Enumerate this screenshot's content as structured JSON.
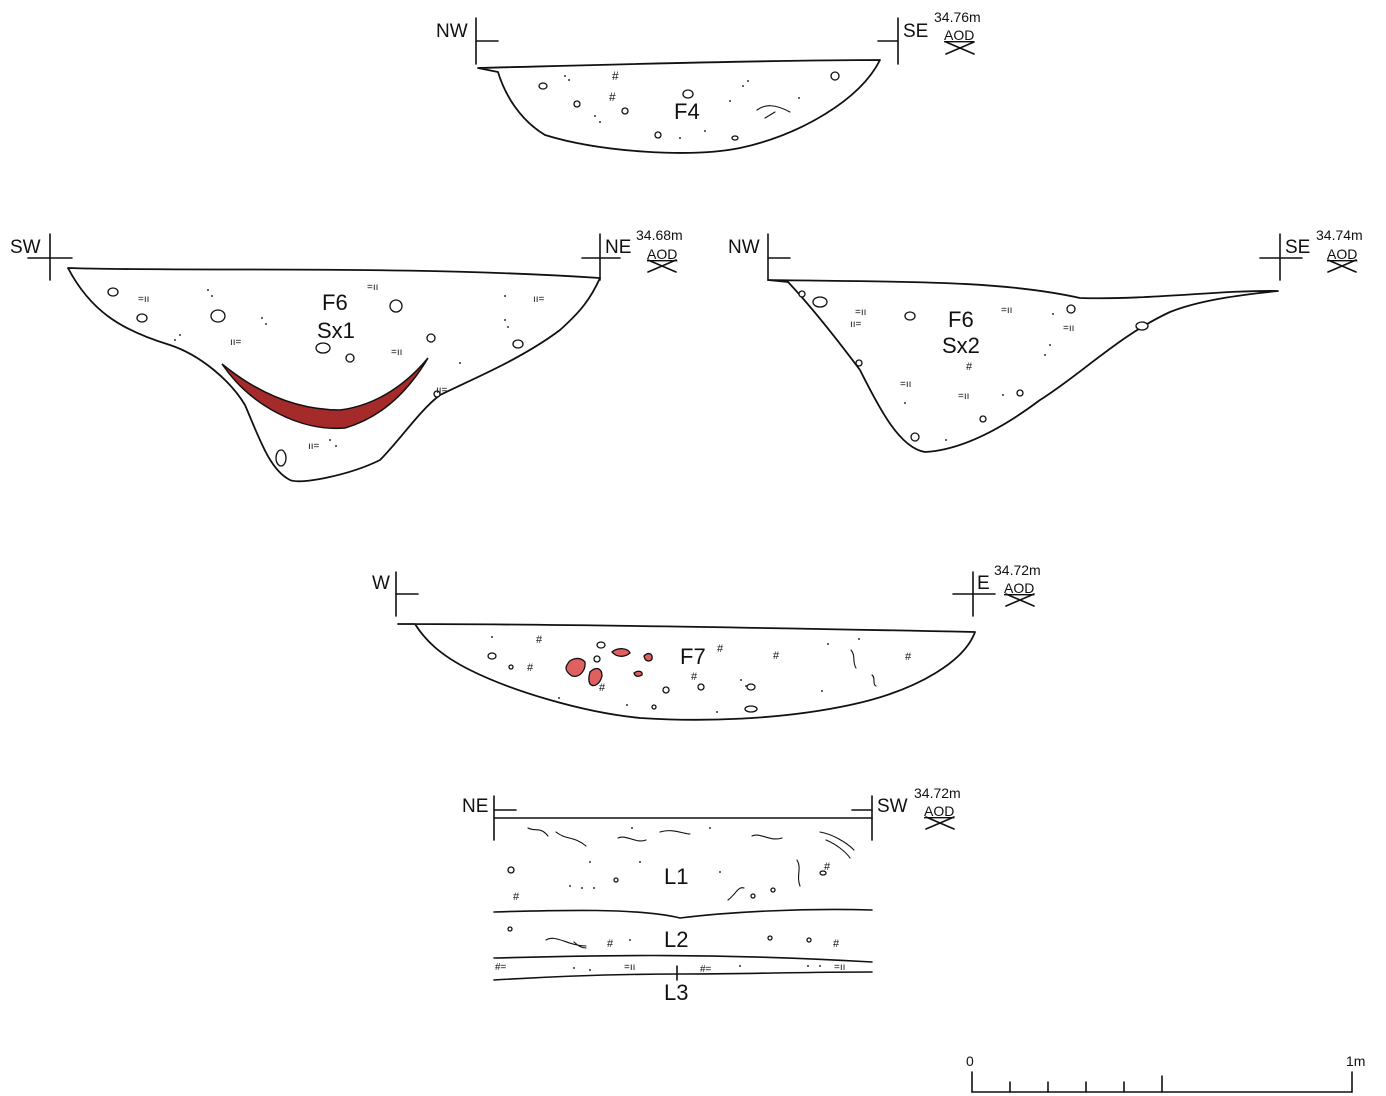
{
  "sections": {
    "f4": {
      "label": "F4",
      "dir_left": "NW",
      "dir_right": "SE",
      "level": "34.76m",
      "datum": "AOD"
    },
    "f6_sx1": {
      "label_line1": "F6",
      "label_line2": "Sx1",
      "dir_left": "SW",
      "dir_right": "NE",
      "level": "34.68m",
      "datum": "AOD"
    },
    "f6_sx2": {
      "label_line1": "F6",
      "label_line2": "Sx2",
      "dir_left": "NW",
      "dir_right": "SE",
      "level": "34.74m",
      "datum": "AOD"
    },
    "f7": {
      "label": "F7",
      "dir_left": "W",
      "dir_right": "E",
      "level": "34.72m",
      "datum": "AOD"
    },
    "layers": {
      "dir_left": "NE",
      "dir_right": "SW",
      "level": "34.72m",
      "datum": "AOD",
      "l1": "L1",
      "l2": "L2",
      "l3": "L3"
    }
  },
  "scale_bar": {
    "start_label": "0",
    "end_label": "1m"
  },
  "colors": {
    "burnt_lens": "#a52a2a",
    "clay_fragments": "#e06060",
    "outline": "#111111"
  }
}
